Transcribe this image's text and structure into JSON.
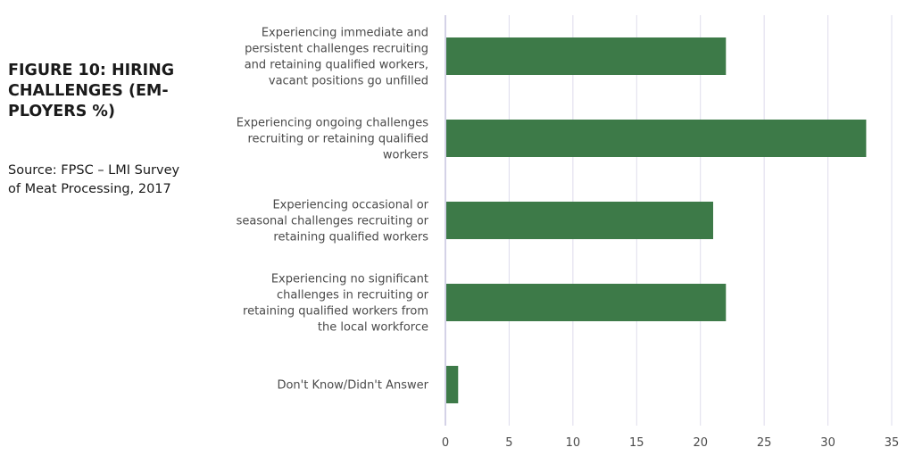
{
  "figure": {
    "title": "FIGURE 10: HIRING\nCHALLENGES (EM-\nPLOYERS %)",
    "source": "Source: FPSC – LMI Survey\nof Meat Processing, 2017"
  },
  "chart_data": {
    "type": "bar",
    "orientation": "horizontal",
    "title": "",
    "xlabel": "",
    "ylabel": "",
    "xlim": [
      0,
      35
    ],
    "xticks": [
      0,
      5,
      10,
      15,
      20,
      25,
      30,
      35
    ],
    "grid": "vertical",
    "legend": "none",
    "bar_color": "#3d7a48",
    "grid_color": "#dedcec",
    "axis_color": "#c6c3df",
    "categories": [
      "Experiencing immediate and persistent challenges recruiting and retaining qualified workers, vacant positions go unfilled",
      "Experiencing ongoing challenges recruiting or retaining qualified workers",
      "Experiencing occasional or seasonal challenges recruiting or retaining qualified workers",
      "Experiencing no significant challenges in recruiting or retaining qualified workers from the local workforce",
      "Don't Know/Didn't Answer"
    ],
    "category_lines": [
      [
        "Experiencing immediate and",
        "persistent challenges recruiting",
        "and retaining qualified workers,",
        "vacant positions go unfilled"
      ],
      [
        "Experiencing ongoing challenges",
        "recruiting or retaining qualified",
        "workers"
      ],
      [
        "Experiencing occasional or",
        "seasonal challenges recruiting or",
        "retaining qualified workers"
      ],
      [
        "Experiencing no significant",
        "challenges in recruiting or",
        "retaining qualified workers from",
        "the local workforce"
      ],
      [
        "Don't Know/Didn't Answer"
      ]
    ],
    "values": [
      22,
      33,
      21,
      22,
      1
    ]
  }
}
